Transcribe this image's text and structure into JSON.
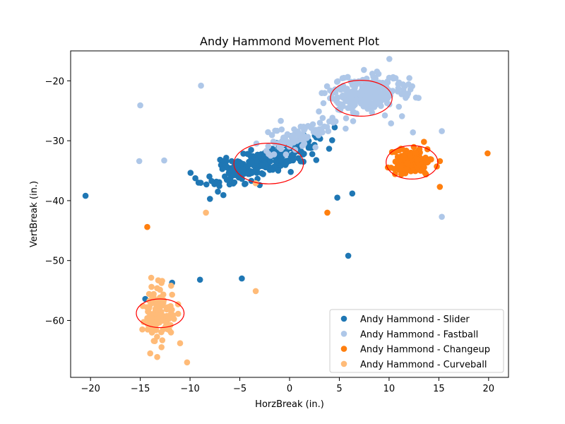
{
  "chart_data": {
    "type": "scatter",
    "title": "Andy Hammond Movement Plot",
    "xlabel": "HorzBreak (in.)",
    "ylabel": "VertBreak (in.)",
    "xlim": [
      -22,
      22
    ],
    "ylim": [
      -69.5,
      -15
    ],
    "xticks": [
      -20,
      -15,
      -10,
      -5,
      0,
      5,
      10,
      15,
      20
    ],
    "yticks": [
      -20,
      -30,
      -40,
      -50,
      -60
    ],
    "grid": false,
    "legend_position": "bottom-right",
    "series": [
      {
        "name": "Andy Hammond - Slider",
        "color": "#1f77b4",
        "cluster": {
          "cx": -3.0,
          "cy": -33.8,
          "sx": 2.6,
          "sy": 1.8,
          "rho": 0.75,
          "n": 230,
          "seed": 11
        },
        "points": [
          [
            -20.5,
            -39.2
          ],
          [
            -9.0,
            -53.2
          ],
          [
            -4.8,
            -53.0
          ],
          [
            -11.8,
            -53.7
          ],
          [
            -14.5,
            -56.4
          ],
          [
            4.8,
            -39.5
          ],
          [
            6.3,
            -38.8
          ],
          [
            5.9,
            -49.2
          ],
          [
            -8.0,
            -39.7
          ],
          [
            -7.2,
            -38.5
          ],
          [
            2.0,
            -30.9
          ],
          [
            -3.0,
            -37.4
          ]
        ],
        "ellipse": {
          "cx": -2.1,
          "cy": -33.8,
          "rx": 3.5,
          "ry": 3.4
        }
      },
      {
        "name": "Andy Hammond - Fastball",
        "color": "#aec7e8",
        "cluster": {
          "cx": 7.5,
          "cy": -22.3,
          "sx": 2.0,
          "sy": 1.7,
          "rho": 0.3,
          "n": 230,
          "seed": 23
        },
        "cluster2": {
          "cx": 1.0,
          "cy": -29.0,
          "sx": 1.6,
          "sy": 1.3,
          "rho": 0.6,
          "n": 80,
          "seed": 37
        },
        "points": [
          [
            -15.0,
            -24.1
          ],
          [
            -8.9,
            -20.8
          ],
          [
            -15.1,
            -33.4
          ],
          [
            -12.6,
            -33.3
          ],
          [
            15.3,
            -42.7
          ],
          [
            12.7,
            -22.8
          ],
          [
            15.3,
            -28.4
          ],
          [
            12.4,
            -28.6
          ],
          [
            11.3,
            -25.9
          ],
          [
            10.2,
            -27.1
          ],
          [
            2.6,
            -31.1
          ],
          [
            3.3,
            -28.6
          ],
          [
            -1.9,
            -32.5
          ]
        ],
        "ellipse": {
          "cx": 7.2,
          "cy": -22.9,
          "rx": 3.1,
          "ry": 3.0
        }
      },
      {
        "name": "Andy Hammond - Changeup",
        "color": "#ff7f0e",
        "cluster": {
          "cx": 12.4,
          "cy": -33.6,
          "sx": 0.85,
          "sy": 1.1,
          "rho": 0.1,
          "n": 130,
          "seed": 47
        },
        "points": [
          [
            19.9,
            -32.1
          ],
          [
            15.1,
            -37.7
          ],
          [
            -14.3,
            -44.4
          ],
          [
            3.8,
            -42.0
          ],
          [
            10.2,
            -34.5
          ],
          [
            14.8,
            -34.3
          ]
        ],
        "ellipse": {
          "cx": 12.3,
          "cy": -33.6,
          "rx": 2.6,
          "ry": 2.8
        }
      },
      {
        "name": "Andy Hammond - Curveball",
        "color": "#ffbb78",
        "cluster": {
          "cx": -13.1,
          "cy": -59.0,
          "sx": 0.75,
          "sy": 2.1,
          "rho": 0.0,
          "n": 110,
          "seed": 59
        },
        "points": [
          [
            -10.3,
            -67.0
          ],
          [
            -11.0,
            -63.8
          ],
          [
            -13.3,
            -66.1
          ],
          [
            -14.0,
            -65.5
          ],
          [
            -11.9,
            -54.2
          ],
          [
            -11.8,
            -55.7
          ],
          [
            -13.2,
            -53.3
          ],
          [
            -12.8,
            -53.4
          ],
          [
            -8.4,
            -42.0
          ],
          [
            -3.4,
            -55.1
          ],
          [
            -3.4,
            -37.1
          ],
          [
            -14.8,
            -61.5
          ],
          [
            -11.2,
            -57.3
          ]
        ],
        "ellipse": {
          "cx": -13.0,
          "cy": -58.8,
          "rx": 2.4,
          "ry": 2.4
        }
      }
    ]
  }
}
